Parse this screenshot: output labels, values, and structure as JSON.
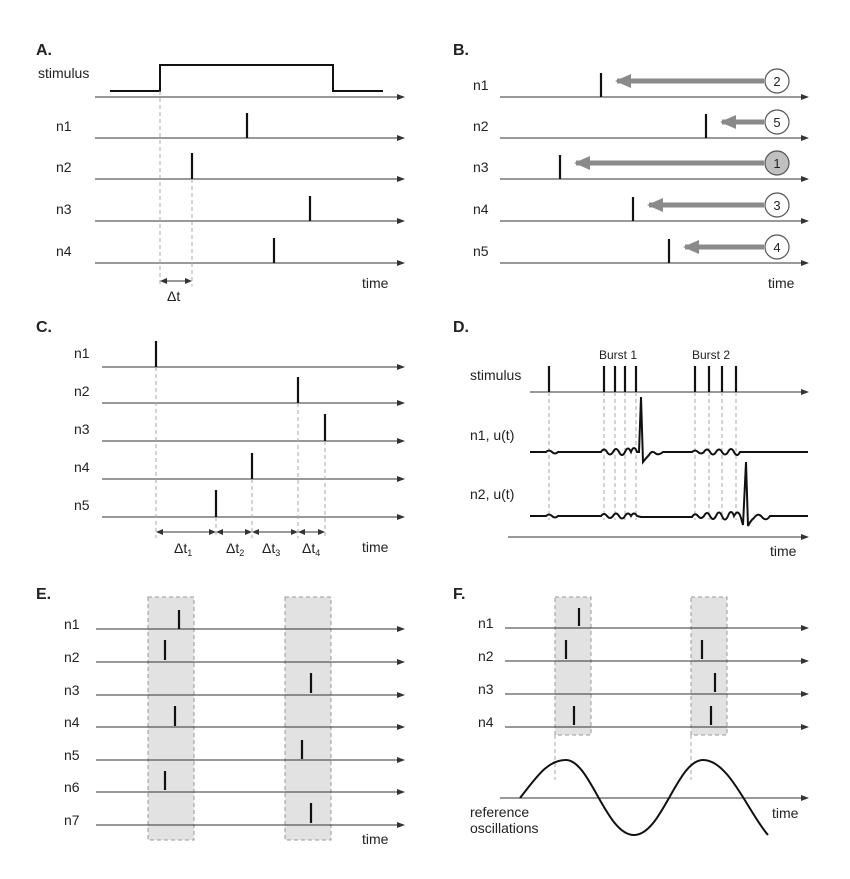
{
  "panels": {
    "a": {
      "label": "A.",
      "stimulus": "stimulus",
      "neurons": [
        "n1",
        "n2",
        "n3",
        "n4"
      ],
      "delta": "Δt",
      "time": "time"
    },
    "b": {
      "label": "B.",
      "neurons": [
        "n1",
        "n2",
        "n3",
        "n4",
        "n5"
      ],
      "ranks": [
        "2",
        "5",
        "1",
        "3",
        "4"
      ],
      "time": "time"
    },
    "c": {
      "label": "C.",
      "neurons": [
        "n1",
        "n2",
        "n3",
        "n4",
        "n5"
      ],
      "deltas": [
        {
          "base": "Δt",
          "sub": "1"
        },
        {
          "base": "Δt",
          "sub": "2"
        },
        {
          "base": "Δt",
          "sub": "3"
        },
        {
          "base": "Δt",
          "sub": "4"
        }
      ],
      "time": "time"
    },
    "d": {
      "label": "D.",
      "stimulus": "stimulus",
      "burst1": "Burst 1",
      "burst2": "Burst 2",
      "trace1": "n1, u(t)",
      "trace2": "n2, u(t)",
      "time": "time"
    },
    "e": {
      "label": "E.",
      "neurons": [
        "n1",
        "n2",
        "n3",
        "n4",
        "n5",
        "n6",
        "n7"
      ],
      "time": "time"
    },
    "f": {
      "label": "F.",
      "neurons": [
        "n1",
        "n2",
        "n3",
        "n4"
      ],
      "osc_line1": "reference",
      "osc_line2": "oscillations",
      "time": "time"
    }
  }
}
